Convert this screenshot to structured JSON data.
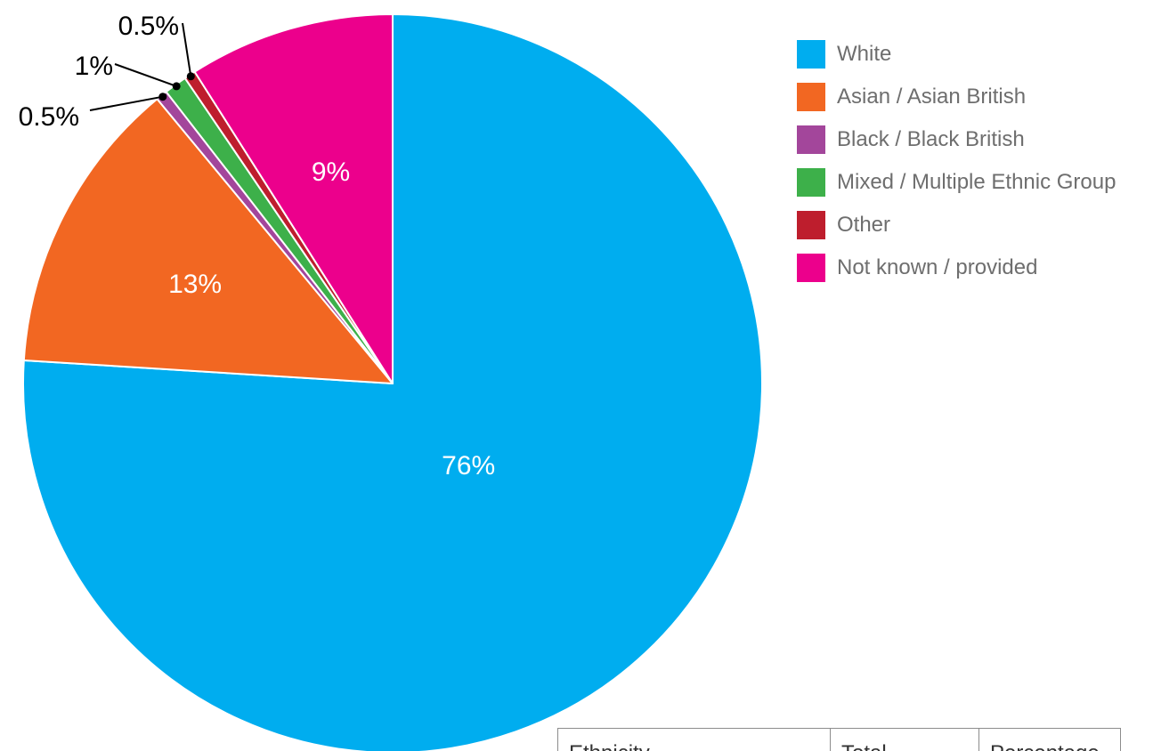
{
  "chart_data": {
    "type": "pie",
    "title": "",
    "slices": [
      {
        "label": "White",
        "value": 76,
        "display": "76%",
        "color": "#00adef",
        "label_style": "inside"
      },
      {
        "label": "Asian / Asian British",
        "value": 13,
        "display": "13%",
        "color": "#f26722",
        "label_style": "inside"
      },
      {
        "label": "Black / Black British",
        "value": 0.5,
        "display": "0.5%",
        "color": "#a3469b",
        "label_style": "callout"
      },
      {
        "label": "Mixed / Multiple Ethnic Group",
        "value": 1,
        "display": "1%",
        "color": "#3db04a",
        "label_style": "callout"
      },
      {
        "label": "Other",
        "value": 0.5,
        "display": "0.5%",
        "color": "#be1e2d",
        "label_style": "callout"
      },
      {
        "label": "Not known / provided",
        "value": 9,
        "display": "9%",
        "color": "#ec008c",
        "label_style": "inside"
      }
    ],
    "start_angle": "12 o'clock",
    "direction": "clockwise",
    "legend_placement": "right"
  },
  "table": {
    "headers": [
      "Ethnicity",
      "Total",
      "Percentage"
    ]
  }
}
